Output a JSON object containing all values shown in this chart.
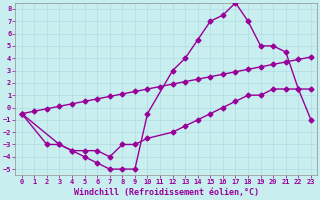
{
  "xlabel": "Windchill (Refroidissement éolien,°C)",
  "bg_color": "#c8eef0",
  "grid_color": "#b0dce0",
  "line_color": "#990099",
  "xlim": [
    -0.5,
    23.5
  ],
  "ylim": [
    -5.5,
    8.5
  ],
  "xticks": [
    0,
    1,
    2,
    3,
    4,
    5,
    6,
    7,
    8,
    9,
    10,
    11,
    12,
    13,
    14,
    15,
    16,
    17,
    18,
    19,
    20,
    21,
    22,
    23
  ],
  "yticks": [
    -5,
    -4,
    -3,
    -2,
    -1,
    0,
    1,
    2,
    3,
    4,
    5,
    6,
    7,
    8
  ],
  "line1_x": [
    0,
    1,
    2,
    3,
    4,
    5,
    6,
    7,
    8,
    9,
    10,
    11,
    12,
    13,
    14,
    15,
    16,
    17,
    18,
    19,
    20,
    21,
    22,
    23
  ],
  "line1_y": [
    -0.5,
    -0.3,
    -0.1,
    0.1,
    0.3,
    0.5,
    0.7,
    0.9,
    1.1,
    1.3,
    1.5,
    1.7,
    1.9,
    2.1,
    2.3,
    2.5,
    2.7,
    2.9,
    3.1,
    3.3,
    3.5,
    3.7,
    3.9,
    4.1
  ],
  "line2_x": [
    0,
    2,
    3,
    4,
    5,
    6,
    7,
    8,
    9,
    10,
    12,
    13,
    14,
    15,
    16,
    17,
    18,
    19,
    20,
    21,
    22,
    23
  ],
  "line2_y": [
    -0.5,
    -3.0,
    -3.0,
    -3.5,
    -3.5,
    -3.5,
    -4.0,
    -3.0,
    -3.0,
    -2.5,
    -2.0,
    -1.5,
    -1.0,
    -0.5,
    0.0,
    0.5,
    1.0,
    1.0,
    1.5,
    1.5,
    1.5,
    -1.0
  ],
  "line3_x": [
    0,
    3,
    4,
    5,
    6,
    7,
    8,
    9,
    10,
    12,
    13,
    14,
    15,
    16,
    17,
    18,
    19,
    20,
    21,
    22,
    23
  ],
  "line3_y": [
    -0.5,
    -3.0,
    -3.5,
    -4.0,
    -4.5,
    -5.0,
    -5.0,
    -5.0,
    -0.5,
    3.0,
    4.0,
    5.5,
    7.0,
    7.5,
    8.5,
    7.0,
    5.0,
    5.0,
    4.5,
    1.5,
    1.5
  ],
  "marker": "D",
  "markersize": 2.5,
  "linewidth": 1.0,
  "tick_fontsize": 5.0,
  "label_fontsize": 6.0
}
